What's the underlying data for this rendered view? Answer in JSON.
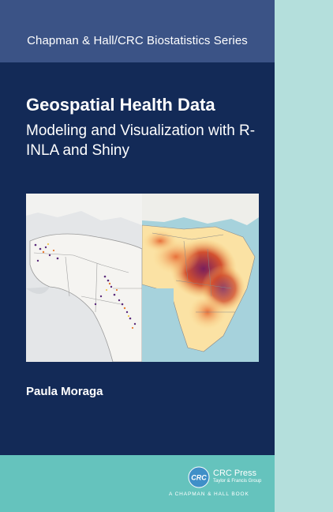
{
  "cover": {
    "series": "Chapman & Hall/CRC Biostatistics Series",
    "title": "Geospatial Health Data",
    "subtitle": "Modeling and Visualization with R-INLA and Shiny",
    "author": "Paula Moraga"
  },
  "publisher": {
    "logo_text": "CRC",
    "name": "CRC Press",
    "sub": "Taylor & Francis Group",
    "imprint": "A CHAPMAN & HALL BOOK"
  },
  "colors": {
    "series_band": "#3b5386",
    "main_panel": "#132a57",
    "bottom_band": "#65c3bd",
    "side_strip": "#b4dfdc"
  }
}
